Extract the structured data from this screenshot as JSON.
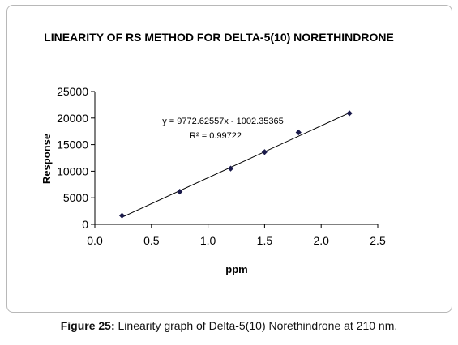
{
  "caption": {
    "label": "Figure 25:",
    "text": "Linearity graph of Delta-5(10) Norethindrone at 210 nm."
  },
  "chart_data": {
    "type": "scatter",
    "title": "LINEARITY OF RS METHOD FOR DELTA-5(10) NORETHINDRONE",
    "xlabel": "ppm",
    "ylabel": "Response",
    "xlim": [
      0,
      2.5
    ],
    "ylim": [
      0,
      25000
    ],
    "x_ticks": [
      "0.0",
      "0.5",
      "1.0",
      "1.5",
      "2.0",
      "2.5"
    ],
    "y_ticks": [
      "0",
      "5000",
      "10000",
      "15000",
      "20000",
      "25000"
    ],
    "x_tick_values": [
      0,
      0.5,
      1.0,
      1.5,
      2.0,
      2.5
    ],
    "y_tick_values": [
      0,
      5000,
      10000,
      15000,
      20000,
      25000
    ],
    "grid": false,
    "legend": "none",
    "marker_color": "#1a1a4a",
    "series": [
      {
        "points": [
          {
            "x": 0.24,
            "y": 1650
          },
          {
            "x": 0.75,
            "y": 6150
          },
          {
            "x": 1.2,
            "y": 10500
          },
          {
            "x": 1.5,
            "y": 13600
          },
          {
            "x": 1.8,
            "y": 17300
          },
          {
            "x": 2.25,
            "y": 20900
          }
        ]
      }
    ],
    "trendline": {
      "slope": 9772.62557,
      "intercept": -1002.35365,
      "x_range": [
        0.24,
        2.25
      ],
      "equation": "y = 9772.62557x - 1002.35365",
      "r2_label": "R² = 0.99722"
    }
  }
}
